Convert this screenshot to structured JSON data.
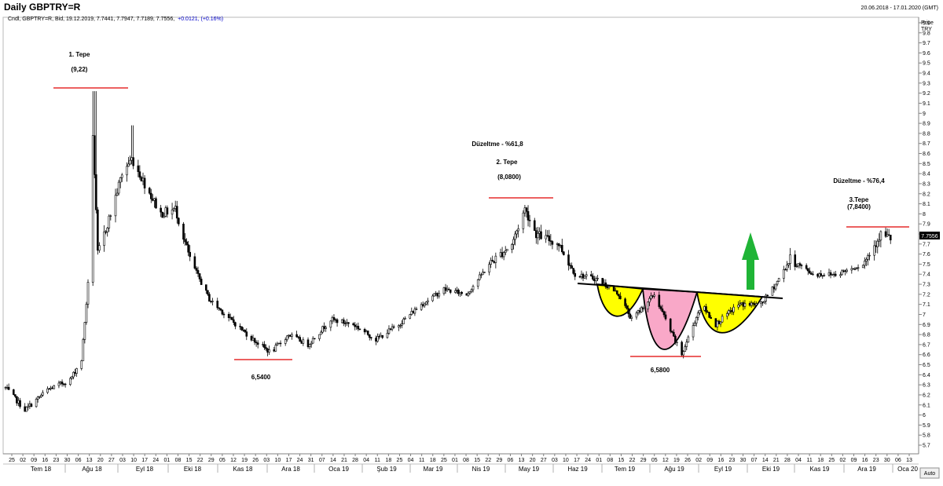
{
  "header": {
    "title": "Daily GBPTRY=R",
    "info": "Cndl, GBPTRY=R, Bid, 19.12.2019, 7.7441, 7.7947, 7.7189, 7.7556,",
    "change": "+0.0121, (+0.16%)",
    "date_range": "20.06.2018 - 17.01.2020 (GMT)"
  },
  "axis": {
    "price_label": "Price",
    "currency_label": "TRY",
    "last_price": "7.7556",
    "auto_label": "Auto"
  },
  "chart_data": {
    "type": "candlestick",
    "title": "Daily GBPTRY=R",
    "ylabel": "Price TRY",
    "ylim": [
      5.65,
      9.95
    ],
    "y_ticks": [
      "5.7",
      "5.8",
      "5.9",
      "6",
      "6.1",
      "6.2",
      "6.3",
      "6.4",
      "6.5",
      "6.6",
      "6.7",
      "6.8",
      "6.9",
      "7",
      "7.1",
      "7.2",
      "7.3",
      "7.4",
      "7.5",
      "7.6",
      "7.7",
      "7.8",
      "7.9",
      "8",
      "8.1",
      "8.2",
      "8.3",
      "8.4",
      "8.5",
      "8.6",
      "8.7",
      "8.8",
      "8.9",
      "9",
      "9.1",
      "9.2",
      "9.3",
      "9.4",
      "9.5",
      "9.6",
      "9.7",
      "9.8",
      "9.9"
    ],
    "x_day_ticks": [
      "25",
      "02",
      "09",
      "16",
      "23",
      "30",
      "06",
      "13",
      "20",
      "27",
      "03",
      "10",
      "17",
      "24",
      "01",
      "08",
      "15",
      "22",
      "29",
      "05",
      "12",
      "19",
      "26",
      "03",
      "10",
      "17",
      "24",
      "31",
      "07",
      "14",
      "21",
      "28",
      "04",
      "11",
      "18",
      "25",
      "04",
      "11",
      "18",
      "25",
      "01",
      "08",
      "15",
      "22",
      "29",
      "06",
      "13",
      "20",
      "27",
      "03",
      "10",
      "17",
      "24",
      "01",
      "08",
      "15",
      "22",
      "29",
      "05",
      "12",
      "19",
      "26",
      "02",
      "09",
      "16",
      "23",
      "30",
      "07",
      "14",
      "21",
      "28",
      "04",
      "11",
      "18",
      "25",
      "02",
      "09",
      "16",
      "23",
      "30",
      "06",
      "13"
    ],
    "x_months": [
      "Tem 18",
      "Ağu 18",
      "Eyl 18",
      "Eki 18",
      "Kas 18",
      "Ara 18",
      "Oca 19",
      "Şub 19",
      "Mar 19",
      "Nis 19",
      "May 19",
      "Haz 19",
      "Tem 19",
      "Ağu 19",
      "Eyl 19",
      "Eki 19",
      "Kas 19",
      "Ara 19",
      "Oca 20"
    ],
    "price_path": [
      {
        "date": "2018-06-20",
        "close": 6.27
      },
      {
        "date": "2018-07-02",
        "close": 6.05
      },
      {
        "date": "2018-07-16",
        "close": 6.25
      },
      {
        "date": "2018-07-30",
        "close": 6.35
      },
      {
        "date": "2018-08-06",
        "close": 6.55
      },
      {
        "date": "2018-08-10",
        "close": 7.3
      },
      {
        "date": "2018-08-13",
        "close": 8.8
      },
      {
        "date": "2018-08-16",
        "close": 7.6
      },
      {
        "date": "2018-08-24",
        "close": 8.0
      },
      {
        "date": "2018-08-31",
        "close": 8.4
      },
      {
        "date": "2018-09-06",
        "close": 8.55
      },
      {
        "date": "2018-09-14",
        "close": 8.3
      },
      {
        "date": "2018-09-24",
        "close": 8.0
      },
      {
        "date": "2018-10-03",
        "close": 8.05
      },
      {
        "date": "2018-10-12",
        "close": 7.55
      },
      {
        "date": "2018-10-24",
        "close": 7.15
      },
      {
        "date": "2018-11-06",
        "close": 6.95
      },
      {
        "date": "2018-11-20",
        "close": 6.75
      },
      {
        "date": "2018-12-01",
        "close": 6.62
      },
      {
        "date": "2018-12-12",
        "close": 6.8
      },
      {
        "date": "2018-12-24",
        "close": 6.7
      },
      {
        "date": "2019-01-07",
        "close": 6.95
      },
      {
        "date": "2019-01-21",
        "close": 6.9
      },
      {
        "date": "2019-02-04",
        "close": 6.75
      },
      {
        "date": "2019-02-18",
        "close": 6.9
      },
      {
        "date": "2019-03-04",
        "close": 7.1
      },
      {
        "date": "2019-03-18",
        "close": 7.25
      },
      {
        "date": "2019-04-01",
        "close": 7.2
      },
      {
        "date": "2019-04-15",
        "close": 7.5
      },
      {
        "date": "2019-04-29",
        "close": 7.7
      },
      {
        "date": "2019-05-07",
        "close": 8.05
      },
      {
        "date": "2019-05-14",
        "close": 7.8
      },
      {
        "date": "2019-05-28",
        "close": 7.7
      },
      {
        "date": "2019-06-07",
        "close": 7.4
      },
      {
        "date": "2019-06-21",
        "close": 7.35
      },
      {
        "date": "2019-07-04",
        "close": 7.2
      },
      {
        "date": "2019-07-12",
        "close": 6.95
      },
      {
        "date": "2019-07-26",
        "close": 7.2
      },
      {
        "date": "2019-08-06",
        "close": 6.8
      },
      {
        "date": "2019-08-12",
        "close": 6.6
      },
      {
        "date": "2019-08-24",
        "close": 7.1
      },
      {
        "date": "2019-09-02",
        "close": 6.9
      },
      {
        "date": "2019-09-16",
        "close": 7.1
      },
      {
        "date": "2019-09-30",
        "close": 7.1
      },
      {
        "date": "2019-10-09",
        "close": 7.3
      },
      {
        "date": "2019-10-18",
        "close": 7.55
      },
      {
        "date": "2019-11-01",
        "close": 7.4
      },
      {
        "date": "2019-11-15",
        "close": 7.4
      },
      {
        "date": "2019-12-02",
        "close": 7.5
      },
      {
        "date": "2019-12-13",
        "close": 7.8
      },
      {
        "date": "2019-12-19",
        "close": 7.7556
      }
    ],
    "levels": [
      {
        "price": 9.22,
        "label": "1. Tepe",
        "value_label": "(9,22)"
      },
      {
        "price": 6.54,
        "value_label": "6,5400"
      },
      {
        "price": 8.08,
        "label": "2. Tepe",
        "value_label": "(8,0800)",
        "note": "Düzeltme - %61,8"
      },
      {
        "price": 6.58,
        "value_label": "6,5800"
      },
      {
        "price": 7.84,
        "label": "3.Tepe",
        "value_label": "(7,8400)",
        "note": "Düzeltme - %76,4"
      }
    ],
    "pattern_colors": {
      "shoulder": "#ffff00",
      "head": "#f9a8c8",
      "arrow": "#1fb436",
      "level_line": "#e00000",
      "neckline": "#000000"
    },
    "grid": false,
    "legend": "none"
  }
}
